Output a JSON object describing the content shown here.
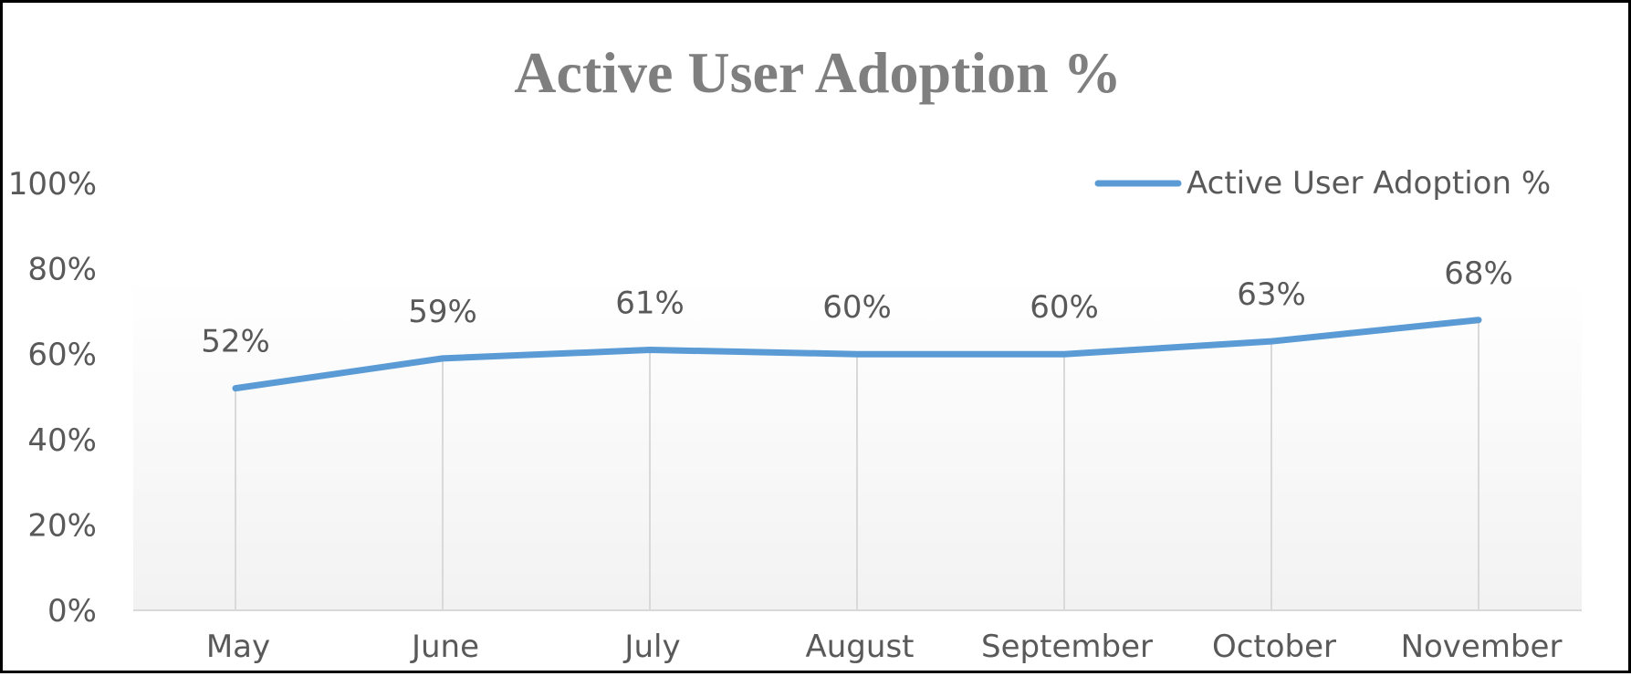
{
  "chart_data": {
    "type": "line",
    "title": "Active User Adoption %",
    "categories": [
      "May",
      "June",
      "July",
      "August",
      "September",
      "October",
      "November"
    ],
    "series": [
      {
        "name": "Active User Adoption %",
        "values": [
          52,
          59,
          61,
          60,
          60,
          63,
          68
        ],
        "data_labels": [
          "52%",
          "59%",
          "61%",
          "60%",
          "60%",
          "63%",
          "68%"
        ],
        "color": "#5B9BD5"
      }
    ],
    "y_ticks": [
      "0%",
      "20%",
      "40%",
      "60%",
      "80%",
      "100%"
    ],
    "ylim": [
      0,
      100
    ],
    "grid": "vertical-drop-lines",
    "legend": "top-right",
    "colors": {
      "title": "#7f7f7f",
      "text": "#595959",
      "axis": "#d9d9d9",
      "plot_gradient_top": "#ffffff",
      "plot_gradient_bottom": "#f2f2f2"
    }
  }
}
